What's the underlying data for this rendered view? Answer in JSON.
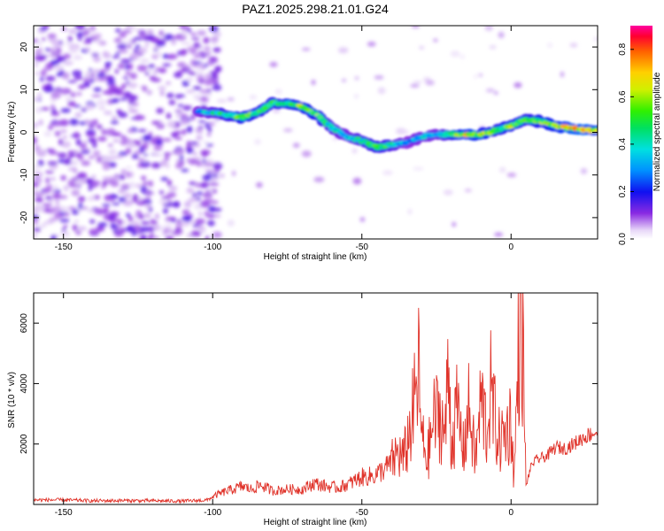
{
  "title": "PAZ1.2025.298.21.01.G24",
  "chart_data": [
    {
      "type": "heatmap",
      "name": "spectrogram",
      "xlabel": "Height of straight line (km)",
      "ylabel": "Frequency (Hz)",
      "xlim": [
        -160,
        29
      ],
      "ylim": [
        -25,
        25
      ],
      "xticks": [
        -150,
        -100,
        -50,
        0
      ],
      "xtick_labels": [
        "-150",
        "-100",
        "-50",
        "0"
      ],
      "yticks": [
        -20,
        -10,
        0,
        10,
        20
      ],
      "ytick_labels": [
        "-20",
        "-10",
        "0",
        "10",
        "20"
      ],
      "colorbar": {
        "label": "Normalized spectral amplitude",
        "range": [
          0,
          0.9
        ],
        "ticks": [
          0,
          0.2,
          0.4,
          0.6,
          0.8
        ],
        "tick_labels": [
          "0.0",
          "0.2",
          "0.4",
          "0.6",
          "0.8"
        ]
      },
      "ridge": {
        "x": [
          -105,
          -98,
          -90,
          -84,
          -80,
          -72,
          -65,
          -60,
          -55,
          -50,
          -45,
          -40,
          -35,
          -30,
          -25,
          -20,
          -15,
          -10,
          -5,
          0,
          5,
          10,
          15,
          20,
          25,
          29
        ],
        "freq": [
          5,
          4.5,
          3.5,
          5,
          7,
          6.5,
          4,
          1,
          -1,
          -2,
          -3.5,
          -3,
          -2.5,
          -1,
          -0.5,
          -0.5,
          -0.5,
          -0.5,
          0.5,
          1.5,
          3,
          2.5,
          1.5,
          1,
          0.5,
          0.5
        ],
        "amplitude": [
          0.3,
          0.45,
          0.55,
          0.5,
          0.5,
          0.55,
          0.55,
          0.4,
          0.35,
          0.45,
          0.5,
          0.45,
          0.3,
          0.35,
          0.35,
          0.5,
          0.65,
          0.6,
          0.5,
          0.55,
          0.5,
          0.55,
          0.6,
          0.7,
          0.75,
          0.6
        ]
      }
    },
    {
      "type": "line",
      "name": "snr",
      "xlabel": "Height of straight line (km)",
      "ylabel": "SNR (10 * v/v)",
      "xlim": [
        -160,
        29
      ],
      "ylim": [
        0,
        7000
      ],
      "xticks": [
        -150,
        -100,
        -50,
        0
      ],
      "xtick_labels": [
        "-150",
        "-100",
        "-50",
        "0"
      ],
      "yticks": [
        2000,
        4000,
        6000
      ],
      "ytick_labels": [
        "2000",
        "4000",
        "6000"
      ],
      "color": "#e0332a",
      "series": [
        {
          "name": "SNR",
          "x": [
            -160,
            -150,
            -140,
            -130,
            -120,
            -110,
            -102,
            -98,
            -95,
            -90,
            -87,
            -84,
            -80,
            -75,
            -70,
            -66,
            -62,
            -58,
            -54,
            -50,
            -46,
            -42,
            -40,
            -38,
            -36,
            -34,
            -32,
            -31,
            -30,
            -28,
            -26,
            -24,
            -22,
            -21,
            -20,
            -18,
            -16,
            -14,
            -12,
            -10,
            -8,
            -7,
            -6,
            -4,
            -2,
            0,
            1,
            2,
            3,
            4,
            5,
            6,
            7,
            9,
            12,
            15,
            18,
            21,
            24,
            27,
            29
          ],
          "values": [
            150,
            150,
            120,
            130,
            120,
            110,
            140,
            350,
            450,
            600,
            500,
            650,
            450,
            500,
            500,
            700,
            600,
            550,
            700,
            900,
            950,
            1200,
            1400,
            1700,
            1500,
            2400,
            3500,
            4400,
            2200,
            1500,
            2800,
            3000,
            2300,
            4800,
            2000,
            3100,
            1800,
            3200,
            1400,
            3500,
            2400,
            3900,
            3100,
            2100,
            2300,
            2800,
            800,
            3700,
            6500,
            5000,
            600,
            1000,
            1350,
            1500,
            1600,
            1900,
            1850,
            2000,
            2200,
            2350,
            2400
          ]
        }
      ]
    }
  ]
}
